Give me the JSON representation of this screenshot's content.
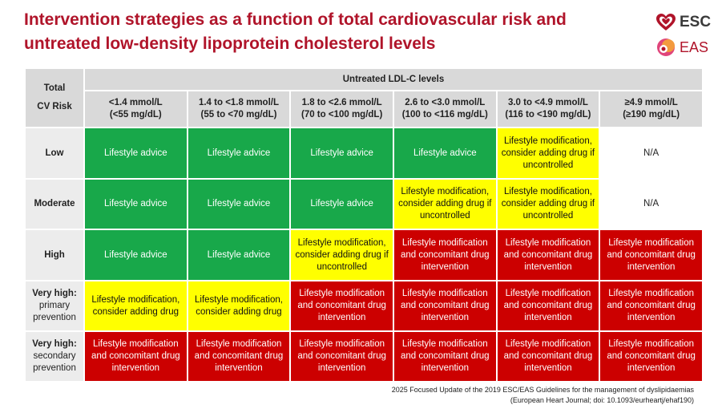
{
  "title_line1": "Intervention strategies as a function of total cardiovascular risk and",
  "title_line2": "untreated low-density lipoprotein cholesterol levels",
  "logos": {
    "esc": "ESC",
    "eas": "EAS"
  },
  "colors": {
    "green": "#18a84a",
    "yellow": "#ffff00",
    "red": "#cc0000",
    "title": "#b0142a"
  },
  "table": {
    "corner_label_line1": "Total",
    "corner_label_line2": "CV Risk",
    "group_header": "Untreated LDL-C levels",
    "columns": [
      {
        "line1": "<1.4 mmol/L",
        "line2": "(<55 mg/dL)"
      },
      {
        "line1": "1.4 to <1.8 mmol/L",
        "line2": "(55 to <70 mg/dL)"
      },
      {
        "line1": "1.8 to <2.6 mmol/L",
        "line2": "(70 to <100 mg/dL)"
      },
      {
        "line1": "2.6 to <3.0 mmol/L",
        "line2": "(100 to <116 mg/dL)"
      },
      {
        "line1": "3.0 to <4.9 mmol/L",
        "line2": "(116 to <190 mg/dL)"
      },
      {
        "line1": "≥4.9 mmol/L",
        "line2": "(≥190 mg/dL)"
      }
    ],
    "rows": [
      {
        "label_bold": "Low",
        "label_rest": "",
        "cells": [
          {
            "text": "Lifestyle advice",
            "color": "green"
          },
          {
            "text": "Lifestyle advice",
            "color": "green"
          },
          {
            "text": "Lifestyle advice",
            "color": "green"
          },
          {
            "text": "Lifestyle advice",
            "color": "green"
          },
          {
            "text": "Lifestyle modification, consider adding drug if uncontrolled",
            "color": "yellow"
          },
          {
            "text": "N/A",
            "color": "white"
          }
        ]
      },
      {
        "label_bold": "Moderate",
        "label_rest": "",
        "cells": [
          {
            "text": "Lifestyle advice",
            "color": "green"
          },
          {
            "text": "Lifestyle advice",
            "color": "green"
          },
          {
            "text": "Lifestyle advice",
            "color": "green"
          },
          {
            "text": "Lifestyle modification, consider adding drug if uncontrolled",
            "color": "yellow"
          },
          {
            "text": "Lifestyle modification, consider adding drug if uncontrolled",
            "color": "yellow"
          },
          {
            "text": "N/A",
            "color": "white"
          }
        ]
      },
      {
        "label_bold": "High",
        "label_rest": "",
        "cells": [
          {
            "text": "Lifestyle advice",
            "color": "green"
          },
          {
            "text": "Lifestyle advice",
            "color": "green"
          },
          {
            "text": "Lifestyle modification, consider adding drug if uncontrolled",
            "color": "yellow"
          },
          {
            "text": "Lifestyle modification and concomitant drug intervention",
            "color": "red"
          },
          {
            "text": "Lifestyle modification and concomitant drug intervention",
            "color": "red"
          },
          {
            "text": "Lifestyle modification and concomitant drug intervention",
            "color": "red"
          }
        ]
      },
      {
        "label_bold": "Very high:",
        "label_rest": "primary prevention",
        "cells": [
          {
            "text": "Lifestyle modification, consider adding drug",
            "color": "yellow"
          },
          {
            "text": "Lifestyle modification, consider adding drug",
            "color": "yellow"
          },
          {
            "text": "Lifestyle modification and concomitant drug intervention",
            "color": "red"
          },
          {
            "text": "Lifestyle modification and concomitant drug intervention",
            "color": "red"
          },
          {
            "text": "Lifestyle modification and concomitant drug intervention",
            "color": "red"
          },
          {
            "text": "Lifestyle modification and concomitant drug intervention",
            "color": "red"
          }
        ]
      },
      {
        "label_bold": "Very high:",
        "label_rest": "secondary prevention",
        "cells": [
          {
            "text": "Lifestyle modification and concomitant drug intervention",
            "color": "red"
          },
          {
            "text": "Lifestyle modification and concomitant drug intervention",
            "color": "red"
          },
          {
            "text": "Lifestyle modification and concomitant drug intervention",
            "color": "red"
          },
          {
            "text": "Lifestyle modification and concomitant drug intervention",
            "color": "red"
          },
          {
            "text": "Lifestyle modification and concomitant drug intervention",
            "color": "red"
          },
          {
            "text": "Lifestyle modification and concomitant drug intervention",
            "color": "red"
          }
        ]
      }
    ]
  },
  "footer_line1": "2025 Focused Update of the 2019 ESC/EAS Guidelines for the management of dyslipidaemias",
  "footer_line2": "(European Heart Journal; doi: 10.1093/eurheartj/ehaf190)"
}
